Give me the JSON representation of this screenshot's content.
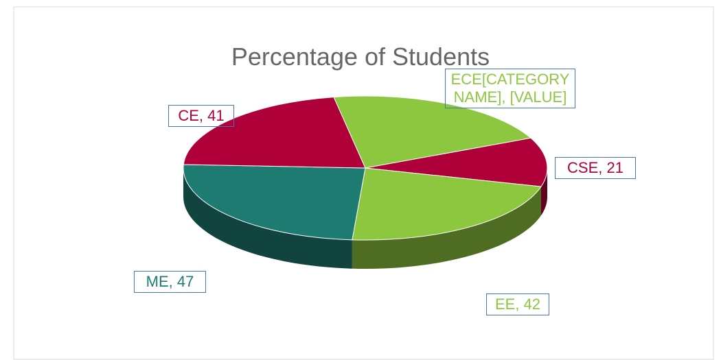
{
  "chart_data": {
    "type": "pie",
    "title": "Percentage of Students",
    "categories": [
      "ECE",
      "CSE",
      "EE",
      "ME",
      "CE"
    ],
    "values": [
      40,
      21,
      42,
      47,
      41
    ],
    "value_labels": [
      "ECE[CATEGORY NAME], [VALUE]",
      "CSE, 21",
      "EE, 42",
      "ME, 47",
      "CE, 41"
    ],
    "colors": [
      "#8dc63f",
      "#b0003a",
      "#8dc63f",
      "#1e7b72",
      "#b0003a"
    ]
  }
}
